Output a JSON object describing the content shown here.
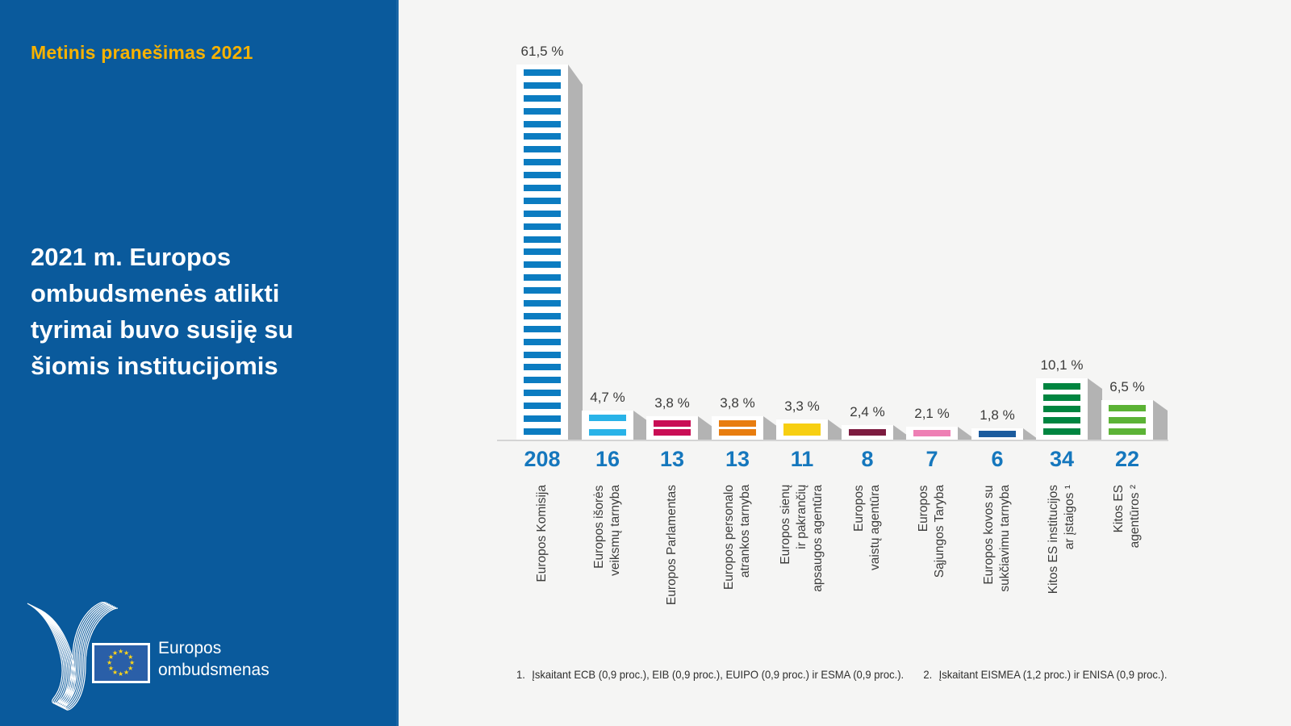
{
  "sidebar": {
    "report_label": "Metinis pranešimas 2021",
    "title_lines": [
      "2021 m. Europos",
      "ombudsmenės atlikti",
      "tyrimai buvo susiję su",
      "šiomis institucijomis"
    ],
    "logo": {
      "org_lines": [
        "Europos",
        "ombudsmenas"
      ]
    }
  },
  "colors": {
    "panel_blue": "#0a5a9c",
    "accent_yellow": "#f8b200",
    "count_blue": "#1577bd",
    "shadow_gray": "#b3b3b3",
    "flag_blue": "#2a5fa8",
    "star_yellow": "#ffd617",
    "background": "#f5f5f4"
  },
  "chart_data": {
    "type": "bar",
    "title": "2021 m. Europos ombudsmenės atlikti tyrimai buvo susiję su šiomis institucijomis",
    "style": "3d-striped-columns",
    "ylim_pct": [
      0,
      61.5
    ],
    "bars": [
      {
        "label": "Europos Komisija",
        "label_lines": [
          "Europos Komisija"
        ],
        "pct": 61.5,
        "pct_label": "61,5 %",
        "count": "208",
        "color": "#0b7cc1",
        "stripes": 29
      },
      {
        "label": "Europos išorės veiksmų tarnyba",
        "label_lines": [
          "Europos išorės",
          "veiksmų tarnyba"
        ],
        "pct": 4.7,
        "pct_label": "4,7 %",
        "count": "16",
        "color": "#29b3e8",
        "stripes": 2
      },
      {
        "label": "Europos Parlamentas",
        "label_lines": [
          "Europos Parlamentas"
        ],
        "pct": 3.8,
        "pct_label": "3,8 %",
        "count": "13",
        "color": "#c90e55",
        "stripes": 2
      },
      {
        "label": "Europos personalo atrankos tarnyba",
        "label_lines": [
          "Europos personalo",
          "atrankos tarnyba"
        ],
        "pct": 3.8,
        "pct_label": "3,8 %",
        "count": "13",
        "color": "#e87d0f",
        "stripes": 2
      },
      {
        "label": "Europos sienų ir pakrančių apsaugos agentūra",
        "label_lines": [
          "Europos sienų",
          "ir pakrančių",
          "apsaugos agentūra"
        ],
        "pct": 3.3,
        "pct_label": "3,3 %",
        "count": "11",
        "color": "#f7cf12",
        "stripes": 2
      },
      {
        "label": "Europos vaistų agentūra",
        "label_lines": [
          "Europos",
          "vaistų agentūra"
        ],
        "pct": 2.4,
        "pct_label": "2,4 %",
        "count": "8",
        "color": "#7c1b3f",
        "stripes": 1
      },
      {
        "label": "Europos Sąjungos Taryba",
        "label_lines": [
          "Europos",
          "Sąjungos Taryba"
        ],
        "pct": 2.1,
        "pct_label": "2,1 %",
        "count": "7",
        "color": "#ee7fb4",
        "stripes": 1
      },
      {
        "label": "Europos kovos su sukčiavimu tarnyba",
        "label_lines": [
          "Europos kovos su",
          "sukčiavimu tarnyba"
        ],
        "pct": 1.8,
        "pct_label": "1,8 %",
        "count": "6",
        "color": "#1c5c9e",
        "stripes": 1
      },
      {
        "label": "Kitos ES institucijos ar įstaigos ¹",
        "label_lines": [
          "Kitos ES institucijos",
          "ar įstaigos ¹"
        ],
        "pct": 10.1,
        "pct_label": "10,1 %",
        "count": "34",
        "color": "#008540",
        "stripes": 5
      },
      {
        "label": "Kitos ES agentūros ²",
        "label_lines": [
          "Kitos ES",
          "agentūros ²"
        ],
        "pct": 6.5,
        "pct_label": "6,5 %",
        "count": "22",
        "color": "#5cb336",
        "stripes": 3
      }
    ],
    "footnotes": [
      {
        "marker": "1.",
        "text": "Įskaitant ECB (0,9 proc.), EIB (0,9 proc.), EUIPO (0,9 proc.) ir ESMA (0,9 proc.)."
      },
      {
        "marker": "2.",
        "text": "Įskaitant EISMEA (1,2 proc.) ir ENISA (0,9 proc.)."
      }
    ]
  }
}
